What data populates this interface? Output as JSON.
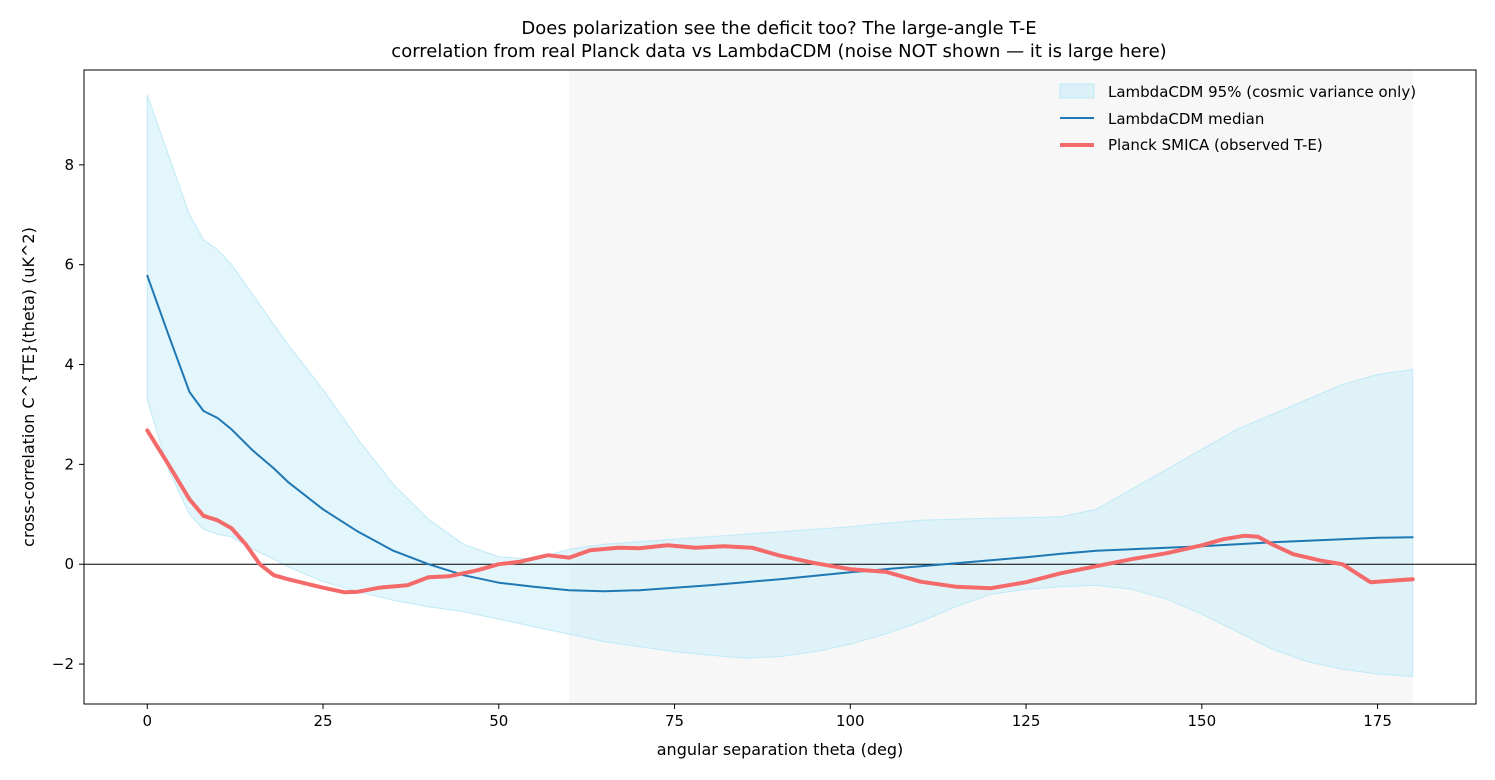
{
  "chart_data": {
    "type": "line",
    "title_lines": [
      "Does polarization see the deficit too? The large-angle T-E",
      "correlation from real Planck data vs LambdaCDM (noise NOT shown — it is large here)"
    ],
    "xlabel": "angular separation  theta  (deg)",
    "ylabel": "cross-correlation  C^{TE}(theta)  (uK^2)",
    "xlim": [
      -9,
      189
    ],
    "ylim": [
      -2.8,
      9.9
    ],
    "xticks": [
      0,
      25,
      50,
      75,
      100,
      125,
      150,
      175
    ],
    "yticks": [
      -2,
      0,
      2,
      4,
      6,
      8
    ],
    "ytick_labels": [
      "−2",
      "0",
      "2",
      "4",
      "6",
      "8"
    ],
    "grid": false,
    "legend_position": "top-right",
    "shaded_region": {
      "x_from": 60,
      "x_to": 180,
      "color": "#f7f7f7"
    },
    "zero_line": {
      "y": 0,
      "color": "#000000"
    },
    "band": {
      "name": "LambdaCDM 95% (cosmic variance only)",
      "color": "#bfeaf7",
      "x": [
        0,
        3,
        6,
        8,
        10,
        12,
        15,
        18,
        20,
        25,
        30,
        35,
        40,
        45,
        50,
        55,
        60,
        65,
        70,
        75,
        80,
        85,
        90,
        95,
        100,
        105,
        110,
        115,
        120,
        125,
        130,
        135,
        140,
        145,
        150,
        155,
        160,
        165,
        170,
        175,
        180
      ],
      "lower": [
        3.3,
        1.9,
        1.0,
        0.7,
        0.6,
        0.55,
        0.3,
        0.1,
        -0.05,
        -0.35,
        -0.55,
        -0.72,
        -0.85,
        -0.95,
        -1.1,
        -1.25,
        -1.4,
        -1.55,
        -1.65,
        -1.75,
        -1.82,
        -1.88,
        -1.85,
        -1.75,
        -1.6,
        -1.4,
        -1.15,
        -0.85,
        -0.6,
        -0.5,
        -0.45,
        -0.42,
        -0.5,
        -0.7,
        -1.0,
        -1.35,
        -1.7,
        -1.95,
        -2.1,
        -2.2,
        -2.25
      ],
      "upper": [
        9.4,
        8.2,
        7.0,
        6.5,
        6.3,
        6.0,
        5.4,
        4.8,
        4.4,
        3.5,
        2.5,
        1.6,
        0.9,
        0.4,
        0.15,
        0.1,
        0.3,
        0.4,
        0.45,
        0.5,
        0.55,
        0.6,
        0.65,
        0.7,
        0.75,
        0.82,
        0.88,
        0.9,
        0.92,
        0.93,
        0.95,
        1.1,
        1.5,
        1.9,
        2.3,
        2.7,
        3.0,
        3.3,
        3.6,
        3.8,
        3.9
      ]
    },
    "series": [
      {
        "name": "LambdaCDM median",
        "color": "#1f77b4",
        "width": 2,
        "x": [
          0,
          3,
          6,
          8,
          10,
          12,
          15,
          18,
          20,
          25,
          30,
          35,
          40,
          45,
          50,
          55,
          60,
          65,
          70,
          75,
          80,
          85,
          90,
          95,
          100,
          105,
          110,
          115,
          120,
          125,
          130,
          135,
          140,
          145,
          150,
          155,
          160,
          165,
          170,
          175,
          180
        ],
        "values": [
          5.78,
          4.6,
          3.45,
          3.07,
          2.93,
          2.7,
          2.28,
          1.92,
          1.65,
          1.1,
          0.65,
          0.27,
          0.0,
          -0.22,
          -0.37,
          -0.45,
          -0.52,
          -0.54,
          -0.52,
          -0.47,
          -0.42,
          -0.36,
          -0.3,
          -0.23,
          -0.16,
          -0.1,
          -0.04,
          0.02,
          0.08,
          0.14,
          0.21,
          0.27,
          0.3,
          0.33,
          0.36,
          0.4,
          0.44,
          0.47,
          0.5,
          0.53,
          0.54
        ]
      },
      {
        "name": "Planck SMICA (observed T-E)",
        "color": "#f46a6a",
        "width": 4,
        "x": [
          0,
          3,
          6,
          8,
          10,
          12,
          14,
          16,
          18,
          20,
          25,
          28,
          30,
          33,
          37,
          40,
          43,
          47,
          50,
          53,
          57,
          60,
          63,
          67,
          70,
          74,
          78,
          82,
          86,
          90,
          95,
          100,
          105,
          110,
          115,
          120,
          125,
          130,
          135,
          140,
          145,
          150,
          153,
          156,
          158,
          160,
          163,
          167,
          170,
          174,
          180
        ],
        "values": [
          2.68,
          2.0,
          1.3,
          0.97,
          0.88,
          0.72,
          0.4,
          0.0,
          -0.22,
          -0.3,
          -0.47,
          -0.56,
          -0.55,
          -0.47,
          -0.42,
          -0.26,
          -0.24,
          -0.12,
          0.0,
          0.05,
          0.18,
          0.13,
          0.28,
          0.33,
          0.32,
          0.38,
          0.33,
          0.36,
          0.33,
          0.17,
          0.02,
          -0.1,
          -0.15,
          -0.35,
          -0.45,
          -0.48,
          -0.36,
          -0.18,
          -0.04,
          0.1,
          0.22,
          0.38,
          0.5,
          0.57,
          0.55,
          0.4,
          0.2,
          0.07,
          0.0,
          -0.36,
          -0.3
        ]
      }
    ]
  }
}
